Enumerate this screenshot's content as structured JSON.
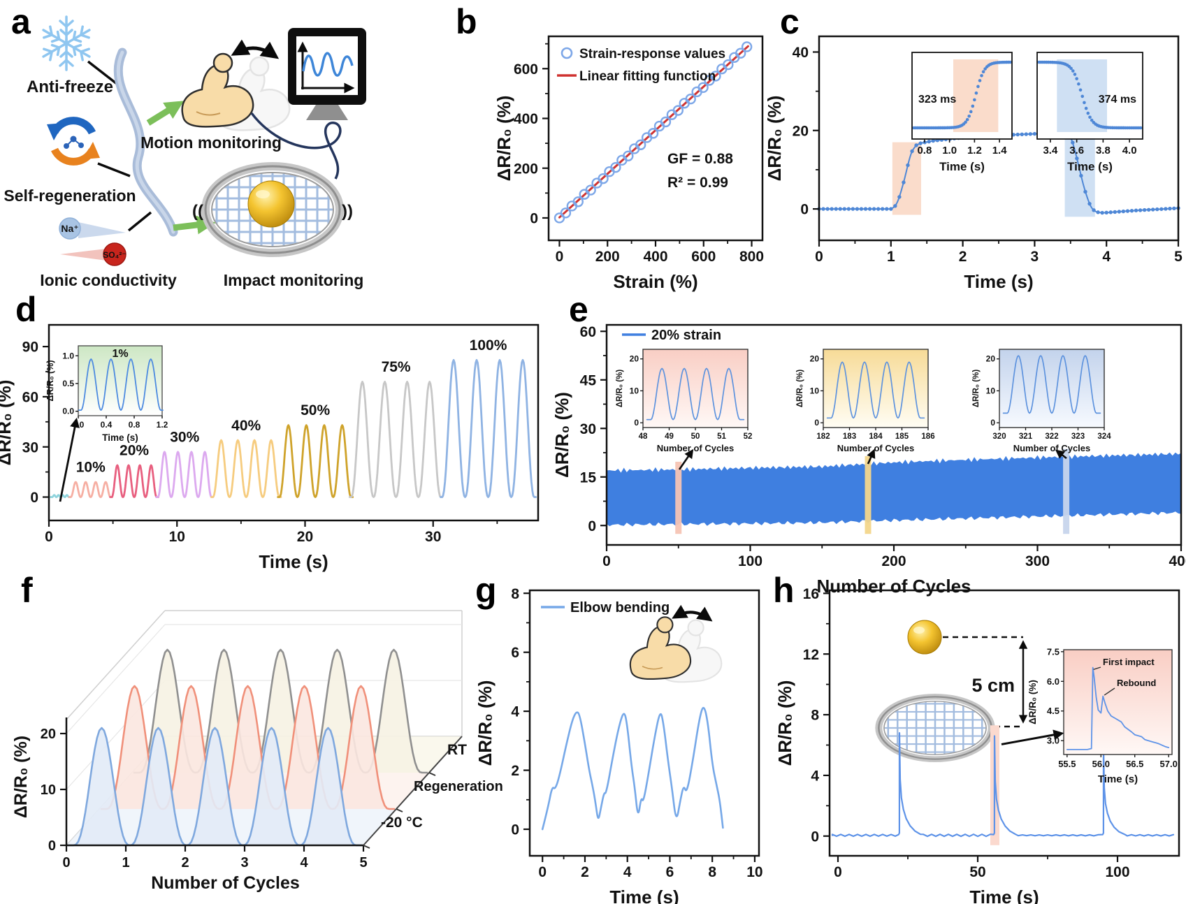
{
  "panel_letters": {
    "a": "a",
    "b": "b",
    "c": "c",
    "d": "d",
    "e": "e",
    "f": "f",
    "g": "g",
    "h": "h"
  },
  "panel_a": {
    "anti_freeze": "Anti-freeze",
    "self_regeneration": "Self-regeneration",
    "ionic_conductivity": "Ionic conductivity",
    "motion_monitoring": "Motion monitoring",
    "impact_monitoring": "Impact monitoring",
    "na_ion": "Na⁺",
    "sulfate_ion": "SO₄²⁻",
    "sound_left": "((",
    "sound_right": "))"
  },
  "chart_data": [
    {
      "panel": "b",
      "type": "scatter",
      "xlabel": "Strain (%)",
      "ylabel": "ΔR/R₀ (%)",
      "xlim": [
        -45,
        845
      ],
      "ylim": [
        -90,
        730
      ],
      "xticks": [
        0,
        200,
        400,
        600,
        800
      ],
      "xtick_labels": [
        "0",
        "200",
        "400",
        "600",
        "800"
      ],
      "xminor": [
        100,
        300,
        500,
        700
      ],
      "yticks": [
        0,
        200,
        400,
        600
      ],
      "ytick_labels": [
        "0",
        "200",
        "400",
        "600"
      ],
      "yminor": [
        100,
        300,
        500,
        700
      ],
      "legend": [
        {
          "label": "Strain-response values",
          "marker": "circle",
          "color": "#7DA7E8"
        },
        {
          "label": "Linear fitting function",
          "marker": "line",
          "color": "#CF3331"
        }
      ],
      "annotations": [
        "GF = 0.88",
        "R² = 0.99"
      ],
      "gauge_factor": 0.88,
      "r_squared": 0.99,
      "scatter_x": [
        0,
        26,
        52,
        78,
        104,
        130,
        156,
        182,
        208,
        234,
        260,
        286,
        312,
        338,
        364,
        390,
        416,
        442,
        468,
        494,
        520,
        546,
        572,
        598,
        624,
        650,
        676,
        702,
        728,
        754,
        780
      ],
      "scatter_y": [
        0,
        20,
        48,
        65,
        95,
        112,
        140,
        158,
        186,
        203,
        232,
        249,
        278,
        294,
        323,
        340,
        369,
        386,
        415,
        432,
        461,
        478,
        507,
        524,
        553,
        570,
        599,
        616,
        645,
        662,
        688
      ],
      "fit_line": {
        "x": [
          0,
          785
        ],
        "y": [
          2,
          690
        ]
      }
    },
    {
      "panel": "c",
      "type": "line",
      "xlabel": "Time (s)",
      "ylabel": "ΔR/R₀ (%)",
      "xlim": [
        0,
        5
      ],
      "ylim": [
        -8,
        44
      ],
      "xticks": [
        0,
        1,
        2,
        3,
        4,
        5
      ],
      "xtick_labels": [
        "0",
        "1",
        "2",
        "3",
        "4",
        "5"
      ],
      "xminor": [
        0.5,
        1.5,
        2.5,
        3.5,
        4.5
      ],
      "yticks": [
        0,
        20,
        40
      ],
      "ytick_labels": [
        "0",
        "20",
        "40"
      ],
      "yminor": [
        10,
        30
      ],
      "color": "#4E87D6",
      "points": [
        [
          0,
          0
        ],
        [
          0.5,
          0
        ],
        [
          1.0,
          0
        ],
        [
          1.05,
          0.5
        ],
        [
          1.1,
          2
        ],
        [
          1.15,
          5
        ],
        [
          1.18,
          7
        ],
        [
          1.22,
          10
        ],
        [
          1.26,
          13
        ],
        [
          1.3,
          15
        ],
        [
          1.35,
          16.2
        ],
        [
          1.42,
          16.8
        ],
        [
          1.6,
          17.4
        ],
        [
          1.9,
          18.0
        ],
        [
          2.3,
          18.6
        ],
        [
          2.8,
          19.0
        ],
        [
          3.2,
          19.3
        ],
        [
          3.42,
          19.6
        ],
        [
          3.48,
          19.2
        ],
        [
          3.52,
          17.5
        ],
        [
          3.56,
          15
        ],
        [
          3.6,
          12
        ],
        [
          3.64,
          9
        ],
        [
          3.68,
          6
        ],
        [
          3.72,
          3.5
        ],
        [
          3.76,
          1.5
        ],
        [
          3.8,
          0
        ],
        [
          3.86,
          -0.8
        ],
        [
          3.95,
          -1.0
        ],
        [
          4.1,
          -0.8
        ],
        [
          4.4,
          -0.4
        ],
        [
          4.7,
          -0.1
        ],
        [
          5.0,
          0.2
        ]
      ],
      "rise_band": {
        "x0": 1.02,
        "x1": 1.42,
        "y0": -1.5,
        "y1": 17,
        "color": "#FADCCB"
      },
      "fall_band": {
        "x0": 3.42,
        "x1": 3.84,
        "y0": -2,
        "y1": 20,
        "color": "#CFE0F3"
      },
      "insets": [
        {
          "label": "323 ms",
          "xlabel": "Time (s)",
          "xlim": [
            0.7,
            1.5
          ],
          "xticks": [
            0.8,
            1.0,
            1.2,
            1.4
          ],
          "xtick_labels": [
            "0.8",
            "1.0",
            "1.2",
            "1.4"
          ],
          "band": [
            1.03,
            1.39
          ],
          "band_color": "#FADCCB",
          "rise": true
        },
        {
          "label": "374 ms",
          "xlabel": "Time (s)",
          "xlim": [
            3.3,
            4.1
          ],
          "xticks": [
            3.4,
            3.6,
            3.8,
            4.0
          ],
          "xtick_labels": [
            "3.4",
            "3.6",
            "3.8",
            "4.0"
          ],
          "band": [
            3.45,
            3.83
          ],
          "band_color": "#CFE0F3",
          "rise": false
        }
      ]
    },
    {
      "panel": "d",
      "type": "cycles",
      "xlabel": "Time (s)",
      "ylabel": "ΔR/R₀ (%)",
      "xlim": [
        0,
        38.2
      ],
      "ylim": [
        -14,
        103
      ],
      "xticks": [
        0,
        10,
        20,
        30
      ],
      "xtick_labels": [
        "0",
        "10",
        "20",
        "30"
      ],
      "xminor": [
        5,
        15,
        25,
        35
      ],
      "yticks": [
        0,
        30,
        60,
        90
      ],
      "ytick_labels": [
        "0",
        "30",
        "60",
        "90"
      ],
      "yminor": [
        15,
        45,
        75
      ],
      "groups": [
        {
          "label": "1%",
          "amplitude": 1.2,
          "color": "#8ED3DC",
          "t0": 0.25,
          "period": 0.33,
          "cycles": 4,
          "label_hidden": true
        },
        {
          "label": "10%",
          "amplitude": 9,
          "color": "#F6AFA3",
          "t0": 1.7,
          "period": 0.78,
          "cycles": 4
        },
        {
          "label": "20%",
          "amplitude": 19,
          "color": "#E85F7F",
          "t0": 4.9,
          "period": 0.88,
          "cycles": 4
        },
        {
          "label": "30%",
          "amplitude": 27,
          "color": "#DCA9EF",
          "t0": 8.5,
          "period": 1.05,
          "cycles": 4
        },
        {
          "label": "40%",
          "amplitude": 34,
          "color": "#F6CC7F",
          "t0": 12.8,
          "period": 1.3,
          "cycles": 4
        },
        {
          "label": "50%",
          "amplitude": 43,
          "color": "#CFA32B",
          "t0": 18.0,
          "period": 1.4,
          "cycles": 4
        },
        {
          "label": "75%",
          "amplitude": 69,
          "color": "#C7C7C7",
          "t0": 23.6,
          "period": 1.75,
          "cycles": 4
        },
        {
          "label": "100%",
          "amplitude": 82,
          "color": "#8FB3E3",
          "t0": 30.7,
          "period": 1.8,
          "cycles": 4
        }
      ],
      "inset": {
        "label": "1%",
        "color": "#4D8BE0",
        "xlabel": "Time (s)",
        "ylabel": "ΔR/R₀ (%)",
        "xlim": [
          0,
          1.2
        ],
        "xticks": [
          0,
          0.4,
          0.8,
          1.2
        ],
        "xtick_labels": [
          "0.0",
          "0.4",
          "0.8",
          "1.2"
        ],
        "yticks": [
          0,
          0.5,
          1
        ],
        "ytick_labels": [
          "0.0",
          "0.5",
          "1.0"
        ],
        "amplitude": 0.92,
        "cycles": 4
      }
    },
    {
      "panel": "e",
      "type": "endurance",
      "xlabel": "Number of Cycles",
      "ylabel": "ΔR/R₀ (%)",
      "xlim": [
        0,
        400
      ],
      "ylim": [
        -6,
        62
      ],
      "xticks": [
        0,
        100,
        200,
        300,
        400
      ],
      "xtick_labels": [
        "0",
        "100",
        "200",
        "300",
        "400"
      ],
      "xminor": [
        50,
        150,
        250,
        350
      ],
      "yticks": [
        0,
        15,
        30,
        45,
        60
      ],
      "ytick_labels": [
        "0",
        "15",
        "30",
        "45",
        "60"
      ],
      "yminor": [
        7.5,
        22.5,
        37.5,
        52.5
      ],
      "legend": {
        "label": "20% strain"
      },
      "fill_color": "#3F7FE0",
      "envelope": {
        "x": [
          0,
          50,
          100,
          150,
          200,
          250,
          300,
          350,
          400
        ],
        "top": [
          17,
          17.3,
          17.8,
          18.2,
          19.5,
          20.3,
          21.0,
          21.6,
          22.2
        ],
        "bottom": [
          0.2,
          0.4,
          0.6,
          0.9,
          1.6,
          2.2,
          2.8,
          3.4,
          4.0
        ]
      },
      "highlights": [
        {
          "x": 50,
          "color": "#F5C4B4"
        },
        {
          "x": 182,
          "color": "#F3D68B"
        },
        {
          "x": 320,
          "color": "#C7D5EC"
        }
      ],
      "insets": [
        {
          "xlabel": "Number of Cycles",
          "ylabel": "ΔR/R₀ (%)",
          "xticks": [
            48,
            49,
            50,
            51,
            52
          ],
          "xtick_labels": [
            "48",
            "49",
            "50",
            "51",
            "52"
          ],
          "yticks": [
            0,
            10,
            20
          ],
          "amplitude": 17,
          "baseline": 1,
          "bg": "pink"
        },
        {
          "xlabel": "Number of Cycles",
          "ylabel": "ΔR/R₀ (%)",
          "xticks": [
            182,
            183,
            184,
            185,
            186
          ],
          "xtick_labels": [
            "182",
            "183",
            "184",
            "185",
            "186"
          ],
          "yticks": [
            0,
            10,
            20
          ],
          "amplitude": 19,
          "baseline": 1.5,
          "bg": "yellow"
        },
        {
          "xlabel": "Number of Cycles",
          "ylabel": "ΔR/R₀ (%)",
          "xticks": [
            320,
            321,
            322,
            323,
            324
          ],
          "xtick_labels": [
            "320",
            "321",
            "322",
            "323",
            "324"
          ],
          "yticks": [
            0,
            10,
            20
          ],
          "amplitude": 21,
          "baseline": 3,
          "bg": "blue"
        }
      ]
    },
    {
      "panel": "f",
      "type": "waterfall",
      "xlabel": "Number of Cycles",
      "ylabel": "ΔR/R₀ (%)",
      "xticks": [
        0,
        1,
        2,
        3,
        4,
        5
      ],
      "xtick_labels": [
        "0",
        "1",
        "2",
        "3",
        "4",
        "5"
      ],
      "yticks": [
        0,
        10,
        20
      ],
      "ytick_labels": [
        "0",
        "10",
        "20"
      ],
      "cycles_per_series": 5,
      "series": [
        {
          "label": "-20 °C",
          "color": "#7FA8DE",
          "fill": "#E2EBF7",
          "amplitude": 21
        },
        {
          "label": "Regeneration",
          "color": "#F0907A",
          "fill": "#FBE7E0",
          "amplitude": 22
        },
        {
          "label": "RT",
          "color": "#909090",
          "fill": "#F6F2E3",
          "amplitude": 22
        }
      ]
    },
    {
      "panel": "g",
      "type": "line",
      "xlabel": "Time (s)",
      "ylabel": "ΔR/R₀ (%)",
      "xlim": [
        -0.6,
        10.2
      ],
      "ylim": [
        -0.9,
        8.1
      ],
      "xticks": [
        0,
        2,
        4,
        6,
        8,
        10
      ],
      "xtick_labels": [
        "0",
        "2",
        "4",
        "6",
        "8",
        "10"
      ],
      "xminor": [
        1,
        3,
        5,
        7,
        9
      ],
      "yticks": [
        0,
        2,
        4,
        6,
        8
      ],
      "ytick_labels": [
        "0",
        "2",
        "4",
        "6",
        "8"
      ],
      "yminor": [
        1,
        3,
        5,
        7
      ],
      "legend": {
        "label": "Elbow bending"
      },
      "color": "#76A8E8",
      "points": [
        [
          0,
          0
        ],
        [
          0.25,
          0.7
        ],
        [
          0.45,
          1.45
        ],
        [
          0.6,
          1.35
        ],
        [
          0.8,
          1.8
        ],
        [
          1.1,
          2.8
        ],
        [
          1.4,
          3.7
        ],
        [
          1.6,
          4.0
        ],
        [
          1.75,
          3.9
        ],
        [
          2.0,
          2.9
        ],
        [
          2.2,
          2.0
        ],
        [
          2.35,
          1.5
        ],
        [
          2.5,
          0.9
        ],
        [
          2.62,
          0.25
        ],
        [
          2.75,
          0.7
        ],
        [
          2.9,
          1.25
        ],
        [
          3.0,
          1.2
        ],
        [
          3.3,
          2.4
        ],
        [
          3.6,
          3.5
        ],
        [
          3.85,
          4.05
        ],
        [
          4.0,
          3.5
        ],
        [
          4.2,
          2.1
        ],
        [
          4.35,
          1.4
        ],
        [
          4.5,
          0.35
        ],
        [
          4.65,
          1.1
        ],
        [
          4.75,
          0.9
        ],
        [
          5.0,
          1.9
        ],
        [
          5.3,
          3.2
        ],
        [
          5.55,
          4.05
        ],
        [
          5.7,
          3.6
        ],
        [
          5.9,
          2.4
        ],
        [
          6.1,
          1.4
        ],
        [
          6.3,
          0.2
        ],
        [
          6.5,
          1.0
        ],
        [
          6.65,
          1.5
        ],
        [
          6.8,
          1.2
        ],
        [
          7.1,
          2.4
        ],
        [
          7.4,
          3.8
        ],
        [
          7.6,
          4.25
        ],
        [
          7.8,
          3.6
        ],
        [
          8.0,
          2.2
        ],
        [
          8.2,
          1.5
        ],
        [
          8.35,
          1.0
        ],
        [
          8.5,
          0.05
        ]
      ]
    },
    {
      "panel": "h",
      "type": "impacts",
      "xlabel": "Time (s)",
      "ylabel": "ΔR/R₀ (%)",
      "xlim": [
        -3,
        122
      ],
      "ylim": [
        -1.3,
        16.2
      ],
      "xticks": [
        0,
        50,
        100
      ],
      "xtick_labels": [
        "0",
        "50",
        "100"
      ],
      "xminor": [
        25,
        75
      ],
      "yticks": [
        0,
        4,
        8,
        12,
        16
      ],
      "ytick_labels": [
        "0",
        "4",
        "8",
        "12",
        "16"
      ],
      "yminor": [
        2,
        6,
        10,
        14
      ],
      "color": "#5E93E8",
      "spikes": [
        {
          "t": 22,
          "peak": 6.8
        },
        {
          "t": 56,
          "peak": 6.6,
          "highlight": true
        },
        {
          "t": 95,
          "peak": 5.8
        }
      ],
      "highlight_color": "#FBD9CE",
      "schematic": {
        "distance": "5 cm"
      },
      "inset": {
        "xlim": [
          55.45,
          57.05
        ],
        "ylim": [
          2.3,
          7.6
        ],
        "xticks": [
          55.5,
          56.0,
          56.5,
          57.0
        ],
        "xtick_labels": [
          "55.5",
          "56.0",
          "56.5",
          "57.0"
        ],
        "yticks": [
          3.0,
          4.5,
          6.0,
          7.5
        ],
        "ytick_labels": [
          "3.0",
          "4.5",
          "6.0",
          "7.5"
        ],
        "xlabel": "Time (s)",
        "ylabel": "ΔR/R₀ (%)",
        "annotation_first": "First impact",
        "annotation_rebound": "Rebound",
        "points": [
          [
            55.5,
            2.55
          ],
          [
            55.8,
            2.55
          ],
          [
            55.86,
            2.6
          ],
          [
            55.88,
            6.7
          ],
          [
            55.9,
            6.2
          ],
          [
            55.93,
            5.2
          ],
          [
            55.96,
            4.55
          ],
          [
            56.0,
            4.4
          ],
          [
            56.03,
            5.25
          ],
          [
            56.06,
            4.9
          ],
          [
            56.1,
            4.5
          ],
          [
            56.15,
            4.25
          ],
          [
            56.2,
            4.15
          ],
          [
            56.3,
            3.95
          ],
          [
            56.35,
            3.7
          ],
          [
            56.45,
            3.45
          ],
          [
            56.5,
            3.3
          ],
          [
            56.6,
            3.2
          ],
          [
            56.65,
            3.05
          ],
          [
            56.75,
            2.95
          ],
          [
            56.85,
            2.85
          ],
          [
            56.95,
            2.7
          ],
          [
            57.0,
            2.65
          ]
        ]
      }
    }
  ]
}
